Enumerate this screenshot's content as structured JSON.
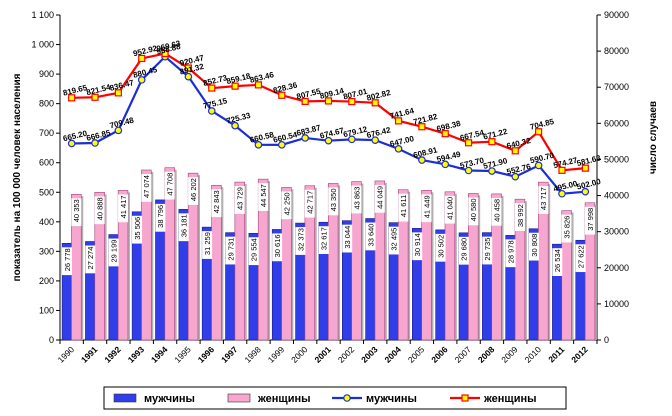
{
  "chart_data": {
    "type": "bar+line",
    "categories": [
      "1990",
      "1991",
      "1992",
      "1993",
      "1994",
      "1995",
      "1996",
      "1997",
      "1998",
      "1999",
      "2000",
      "2001",
      "2002",
      "2003",
      "2004",
      "2005",
      "2006",
      "2007",
      "2008",
      "2009",
      "2010",
      "2011",
      "2012"
    ],
    "bold_categories": [
      "1991",
      "1992",
      "1993",
      "1994",
      "1996",
      "1997",
      "2001",
      "2003",
      "2004",
      "2006",
      "2008",
      "2011",
      "2012"
    ],
    "ylabel_left": "показатель на 100 000 человек населения",
    "ylabel_right": "число случаев",
    "ylim_left": [
      0,
      1100
    ],
    "ylim_right": [
      0,
      90000
    ],
    "yticks_left": [
      "0",
      "100",
      "200",
      "300",
      "400",
      "500",
      "600",
      "700",
      "800",
      "900",
      "1 000",
      "1 100"
    ],
    "yticks_right": [
      "0",
      "10000",
      "20000",
      "30000",
      "40000",
      "50000",
      "60000",
      "70000",
      "80000",
      "90000"
    ],
    "bar_series": [
      {
        "name": "мужчины",
        "axis": "right",
        "color": "#2f3ee8",
        "values": [
          26778,
          27274,
          29199,
          35506,
          38796,
          36181,
          31259,
          29731,
          29554,
          30616,
          32373,
          32617,
          33044,
          33640,
          32495,
          30914,
          30502,
          29680,
          29735,
          28978,
          30808,
          26534,
          27622
        ],
        "labels": [
          "26 778",
          "27 274",
          "29 199",
          "35 506",
          "38 796",
          "36 181",
          "31 259",
          "29 731",
          "29 554",
          "30 616",
          "32 373",
          "32 617",
          "33 044",
          "33 640",
          "32 495",
          "30 914",
          "30 502",
          "29 680",
          "29 735",
          "28 978",
          "30 808",
          "26 534",
          "27 622"
        ]
      },
      {
        "name": "женщины",
        "axis": "right",
        "color": "#f7a6cf",
        "values": [
          40353,
          40888,
          41417,
          47074,
          47708,
          46202,
          42843,
          43729,
          44547,
          42250,
          42717,
          43350,
          43863,
          44049,
          41611,
          41449,
          41040,
          40580,
          40458,
          38992,
          43717,
          35826,
          37998
        ],
        "labels": [
          "40 353",
          "40 888",
          "41 417",
          "47 074",
          "47 708",
          "46 202",
          "42 843",
          "43 729",
          "44 547",
          "42 250",
          "42 717",
          "43 350",
          "43 863",
          "44 049",
          "41 611",
          "41 449",
          "41 040",
          "40 580",
          "40 458",
          "38 992",
          "43 717",
          "35 826",
          "37 998"
        ]
      }
    ],
    "line_series": [
      {
        "name": "мужчины",
        "axis": "left",
        "color": "#1c2fd6",
        "marker": "circle",
        "values": [
          665.2,
          666.85,
          709.48,
          880.45,
          958.88,
          891.32,
          775.15,
          725.33,
          660.58,
          660.54,
          683.87,
          674.67,
          679.12,
          676.42,
          647.0,
          608.91,
          594.49,
          573.7,
          571.9,
          552.76,
          590.7,
          495.0,
          502.0
        ],
        "labels": [
          "665.20",
          "666.85",
          "709.48",
          "880.45",
          "958.88",
          "891.32",
          "775.15",
          "725.33",
          "660.58",
          "660.54",
          "683.87",
          "674.67",
          "679.12",
          "676.42",
          "647.00",
          "608.91",
          "594.49",
          "573.70",
          "571.90",
          "552.76",
          "590.70",
          "495.00",
          "502.00"
        ]
      },
      {
        "name": "женщины",
        "axis": "left",
        "color": "#ff0000",
        "marker": "square",
        "values": [
          819.65,
          821.54,
          836.47,
          952.92,
          969.63,
          920.47,
          852.73,
          859.18,
          863.46,
          828.36,
          807.55,
          809.14,
          807.01,
          802.82,
          741.64,
          721.82,
          698.38,
          667.54,
          671.22,
          640.32,
          704.85,
          574.27,
          581.63
        ],
        "labels": [
          "819.65",
          "821.54",
          "836.47",
          "952.92",
          "969.63",
          "920.47",
          "852.73",
          "859.18",
          "863.46",
          "828.36",
          "807.55",
          "809.14",
          "807.01",
          "802.82",
          "741.64",
          "721.82",
          "698.38",
          "667.54",
          "671.22",
          "640.32",
          "704.85",
          "574.27",
          "581.63"
        ]
      }
    ],
    "legend": {
      "position": "bottom",
      "items": [
        {
          "label": "мужчины",
          "kind": "bar",
          "color": "#2f3ee8"
        },
        {
          "label": "женщины",
          "kind": "bar",
          "color": "#f7a6cf"
        },
        {
          "label": "мужчины",
          "kind": "line",
          "color": "#1c2fd6",
          "marker_fill": "#ffff00",
          "marker": "circle"
        },
        {
          "label": "женщины",
          "kind": "line",
          "color": "#ff0000",
          "marker_fill": "#ffff00",
          "marker": "square"
        }
      ]
    },
    "grid": false
  }
}
